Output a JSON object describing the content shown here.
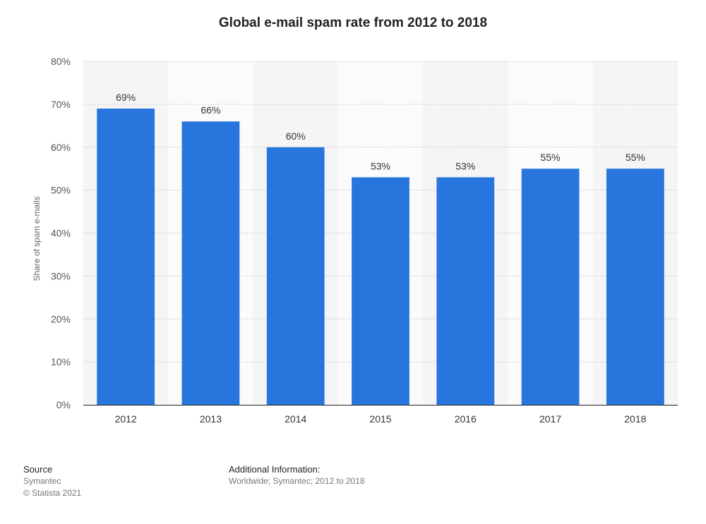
{
  "chart_data": {
    "type": "bar",
    "title": "Global e-mail spam rate from 2012 to 2018",
    "xlabel": "",
    "ylabel": "Share of spam e-mails",
    "categories": [
      "2012",
      "2013",
      "2014",
      "2015",
      "2016",
      "2017",
      "2018"
    ],
    "values": [
      69,
      66,
      60,
      53,
      53,
      55,
      55
    ],
    "data_labels": [
      "69%",
      "66%",
      "60%",
      "53%",
      "53%",
      "55%",
      "55%"
    ],
    "ylim": [
      0,
      80
    ],
    "yticks": [
      0,
      10,
      20,
      30,
      40,
      50,
      60,
      70,
      80
    ],
    "ytick_labels": [
      "0%",
      "10%",
      "20%",
      "30%",
      "40%",
      "50%",
      "60%",
      "70%",
      "80%"
    ],
    "grid": true,
    "bar_color": "#2876dd",
    "band_colors": [
      "#f5f5f5",
      "#fbfbfb"
    ]
  },
  "footer": {
    "source_heading": "Source",
    "source_name": "Symantec",
    "copyright": "© Statista 2021",
    "info_heading": "Additional Information:",
    "info_text": "Worldwide; Symantec; 2012 to 2018"
  }
}
